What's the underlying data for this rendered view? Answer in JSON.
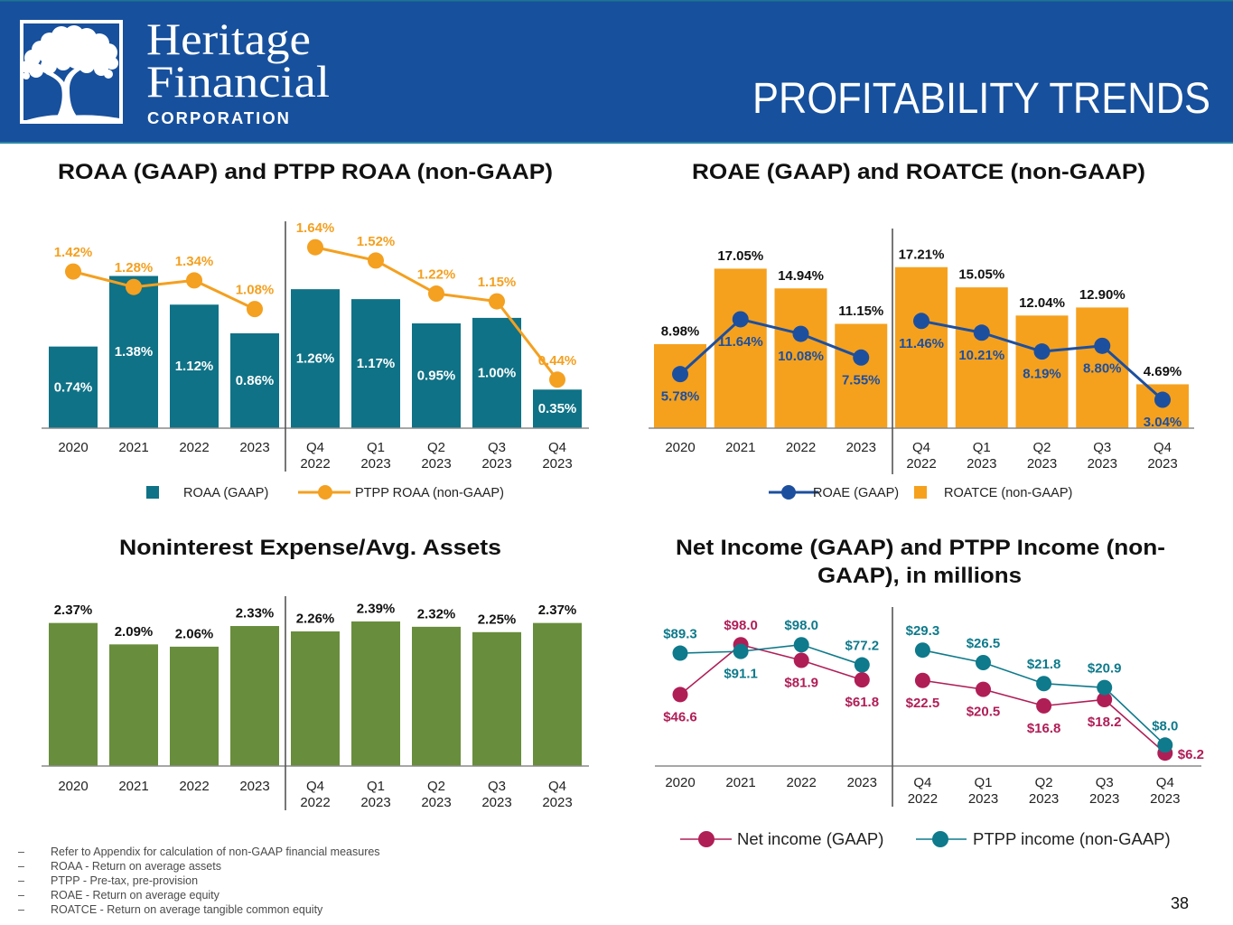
{
  "header": {
    "logo_line1": "Heritage",
    "logo_line2": "Financial",
    "logo_line3": "CORPORATION",
    "title": "PROFITABILITY TRENDS",
    "brand_color": "#17509d"
  },
  "chart_data": [
    {
      "id": "roaa",
      "type": "bar",
      "title": "ROAA (GAAP) and PTPP ROAA (non-GAAP)",
      "xlabel": "",
      "ylabel": "",
      "grid": false,
      "legend": "bottom",
      "categories": [
        [
          "2020"
        ],
        [
          "2021"
        ],
        [
          "2022"
        ],
        [
          "2023"
        ],
        [
          "Q4",
          "2022"
        ],
        [
          "Q1",
          "2023"
        ],
        [
          "Q2",
          "2023"
        ],
        [
          "Q3",
          "2023"
        ],
        [
          "Q4",
          "2023"
        ]
      ],
      "group_break_after": "2023",
      "ylim": [
        0,
        1.9
      ],
      "series": [
        {
          "name": "ROAA (GAAP)",
          "type": "bar",
          "color": "#0f7286",
          "values": [
            0.74,
            1.38,
            1.12,
            0.86,
            1.26,
            1.17,
            0.95,
            1.0,
            0.35
          ],
          "labels": [
            "0.74%",
            "1.38%",
            "1.12%",
            "0.86%",
            "1.26%",
            "1.17%",
            "0.95%",
            "1.00%",
            "0.35%"
          ]
        },
        {
          "name": "PTPP ROAA (non-GAAP)",
          "type": "line",
          "color": "#f4a020",
          "values": [
            1.42,
            1.28,
            1.34,
            1.08,
            1.64,
            1.52,
            1.22,
            1.15,
            0.44
          ],
          "labels": [
            "1.42%",
            "1.28%",
            "1.34%",
            "1.08%",
            "1.64%",
            "1.52%",
            "1.22%",
            "1.15%",
            "0.44%"
          ]
        }
      ]
    },
    {
      "id": "roae",
      "type": "bar",
      "title": "ROAE (GAAP) and ROATCE (non-GAAP)",
      "xlabel": "",
      "ylabel": "",
      "grid": false,
      "legend": "bottom",
      "categories": [
        [
          "2020"
        ],
        [
          "2021"
        ],
        [
          "2022"
        ],
        [
          "2023"
        ],
        [
          "Q4",
          "2022"
        ],
        [
          "Q1",
          "2023"
        ],
        [
          "Q2",
          "2023"
        ],
        [
          "Q3",
          "2023"
        ],
        [
          "Q4",
          "2023"
        ]
      ],
      "group_break_after": "2023",
      "ylim": [
        0,
        22.4
      ],
      "series": [
        {
          "name": "ROAE (GAAP)",
          "type": "line",
          "color": "#1d4f9f",
          "values": [
            5.78,
            11.64,
            10.08,
            7.55,
            11.46,
            10.21,
            8.19,
            8.8,
            3.04
          ],
          "labels": [
            "5.78%",
            "11.64%",
            "10.08%",
            "7.55%",
            "11.46%",
            "10.21%",
            "8.19%",
            "8.80%",
            "3.04%"
          ]
        },
        {
          "name": "ROATCE (non-GAAP)",
          "type": "bar",
          "color": "#f5a11e",
          "values": [
            8.98,
            17.05,
            14.94,
            11.15,
            17.21,
            15.05,
            12.04,
            12.9,
            4.69
          ],
          "labels": [
            "8.98%",
            "17.05%",
            "14.94%",
            "11.15%",
            "17.21%",
            "15.05%",
            "12.04%",
            "12.90%",
            "4.69%"
          ]
        }
      ]
    },
    {
      "id": "nie",
      "type": "bar",
      "title": "Noninterest Expense/Avg. Assets",
      "xlabel": "",
      "ylabel": "",
      "grid": false,
      "legend": "none",
      "categories": [
        [
          "2020"
        ],
        [
          "2021"
        ],
        [
          "2022"
        ],
        [
          "2023"
        ],
        [
          "Q4",
          "2022"
        ],
        [
          "Q1",
          "2023"
        ],
        [
          "Q2",
          "2023"
        ],
        [
          "Q3",
          "2023"
        ],
        [
          "Q4",
          "2023"
        ]
      ],
      "group_break_after": "2023",
      "ylim": [
        0.5,
        2.72
      ],
      "series": [
        {
          "name": "Noninterest Expense/Avg. Assets",
          "type": "bar",
          "color": "#688d3c",
          "values": [
            2.37,
            2.09,
            2.06,
            2.33,
            2.26,
            2.39,
            2.32,
            2.25,
            2.37
          ],
          "labels": [
            "2.37%",
            "2.09%",
            "2.06%",
            "2.33%",
            "2.26%",
            "2.39%",
            "2.32%",
            "2.25%",
            "2.37%"
          ]
        }
      ]
    },
    {
      "id": "ni",
      "type": "line",
      "title_lines": [
        "Net Income (GAAP) and PTPP Income (non-",
        "GAAP), in millions"
      ],
      "xlabel": "",
      "ylabel": "",
      "grid": false,
      "legend": "bottom",
      "categories": [
        [
          "2020"
        ],
        [
          "2021"
        ],
        [
          "2022"
        ],
        [
          "2023"
        ],
        [
          "Q4",
          "2022"
        ],
        [
          "Q1",
          "2023"
        ],
        [
          "Q2",
          "2023"
        ],
        [
          "Q3",
          "2023"
        ],
        [
          "Q4",
          "2023"
        ]
      ],
      "group_break_after": "2023",
      "ylim_by_group": {
        "annual": [
          -27,
          148
        ],
        "quarterly": [
          3.3,
          41.4
        ]
      },
      "series": [
        {
          "name": "Net income (GAAP)",
          "type": "line",
          "color": "#b01e56",
          "values": [
            46.6,
            98.0,
            81.9,
            61.8,
            22.5,
            20.5,
            16.8,
            18.2,
            6.2
          ],
          "labels": [
            "$46.6",
            "$98.0",
            "$81.9",
            "$61.8",
            "$22.5",
            "$20.5",
            "$16.8",
            "$18.2",
            "$6.2"
          ]
        },
        {
          "name": "PTPP income (non-GAAP)",
          "type": "line",
          "color": "#0e7a8b",
          "values": [
            89.3,
            91.1,
            98.0,
            77.2,
            29.3,
            26.5,
            21.8,
            20.9,
            8.0
          ],
          "labels": [
            "$89.3",
            "$91.1",
            "$98.0",
            "$77.2",
            "$29.3",
            "$26.5",
            "$21.8",
            "$20.9",
            "$8.0"
          ]
        }
      ]
    }
  ],
  "footnotes": [
    {
      "bullet": "–",
      "text": "Refer to Appendix for calculation of non-GAAP financial measures"
    },
    {
      "bullet": "–",
      "text": "ROAA - Return on average assets"
    },
    {
      "bullet": "–",
      "text": "PTPP - Pre-tax, pre-provision"
    },
    {
      "bullet": "–",
      "text": "ROAE - Return on average equity"
    },
    {
      "bullet": "–",
      "text": "ROATCE - Return on average tangible common equity"
    }
  ],
  "page_number": "38"
}
